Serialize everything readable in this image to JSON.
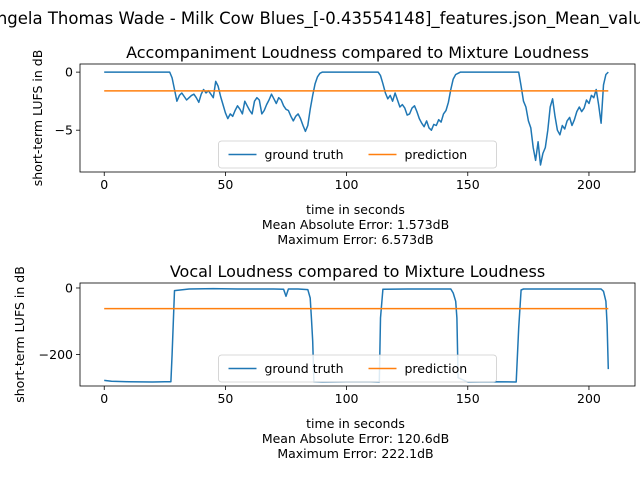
{
  "figure": {
    "suptitle": "ngela Thomas Wade - Milk Cow Blues_[-0.43554148]_features.json_Mean_valu"
  },
  "chart_data": [
    {
      "type": "line",
      "title": "Accompaniment Loudness compared to Mixture Loudness",
      "xlabel": "time in seconds",
      "ylabel": "short-term LUFS in dB",
      "xlim": [
        -10,
        219
      ],
      "ylim": [
        -8.6,
        0.7
      ],
      "xticks": [
        0,
        50,
        100,
        150,
        200
      ],
      "yticks": [
        0,
        -5
      ],
      "grid": false,
      "legend": "lower center, 2 columns",
      "caption": [
        "time in seconds",
        "Mean Absolute Error: 1.573dB",
        "Maximum Error: 6.573dB"
      ],
      "series": [
        {
          "name": "ground truth",
          "color": "#1f77b4",
          "x": [
            0,
            10,
            20,
            27,
            28,
            29,
            30,
            31,
            32,
            33,
            34,
            35,
            36,
            37,
            38,
            39,
            40,
            41,
            42,
            43,
            44,
            45,
            46,
            47,
            48,
            49,
            50,
            51,
            52,
            53,
            54,
            55,
            56,
            57,
            58,
            59,
            60,
            61,
            62,
            63,
            64,
            65,
            66,
            67,
            68,
            69,
            70,
            71,
            72,
            73,
            74,
            75,
            76,
            77,
            78,
            79,
            80,
            81,
            82,
            83,
            84,
            85,
            86,
            87,
            88,
            89,
            90,
            100,
            110,
            113,
            114,
            115,
            116,
            117,
            118,
            119,
            120,
            121,
            122,
            123,
            124,
            125,
            126,
            127,
            128,
            129,
            130,
            131,
            132,
            133,
            134,
            135,
            136,
            137,
            138,
            139,
            140,
            141,
            142,
            143,
            144,
            145,
            146,
            147,
            148,
            160,
            170,
            171,
            172,
            173,
            174,
            175,
            176,
            177,
            178,
            179,
            180,
            181,
            182,
            183,
            184,
            185,
            186,
            187,
            188,
            189,
            190,
            191,
            192,
            193,
            194,
            195,
            196,
            197,
            198,
            199,
            200,
            201,
            202,
            203,
            204,
            205,
            206,
            207,
            208
          ],
          "values": [
            0,
            0,
            0,
            0,
            -0.5,
            -1.5,
            -2.5,
            -2.0,
            -1.8,
            -2.1,
            -2.4,
            -2.2,
            -2.0,
            -1.9,
            -2.2,
            -2.6,
            -1.9,
            -1.5,
            -1.8,
            -1.6,
            -1.9,
            -2.2,
            -0.8,
            -1.2,
            -2.1,
            -2.8,
            -3.5,
            -4.0,
            -3.6,
            -3.8,
            -3.3,
            -2.9,
            -3.2,
            -3.6,
            -2.5,
            -2.9,
            -3.3,
            -3.6,
            -2.5,
            -2.2,
            -2.4,
            -3.6,
            -3.3,
            -2.8,
            -2.4,
            -1.9,
            -2.3,
            -2.7,
            -2.2,
            -2.4,
            -2.9,
            -3.2,
            -3.3,
            -3.8,
            -4.2,
            -3.8,
            -3.6,
            -4.0,
            -4.6,
            -5.1,
            -4.6,
            -3.2,
            -2.0,
            -1.0,
            -0.4,
            -0.1,
            0,
            0,
            0,
            0,
            -0.3,
            -1.0,
            -1.8,
            -2.3,
            -2.0,
            -2.5,
            -1.8,
            -2.4,
            -3.0,
            -2.8,
            -3.1,
            -3.7,
            -3.6,
            -3.1,
            -2.9,
            -3.4,
            -4.0,
            -4.4,
            -4.7,
            -4.2,
            -4.8,
            -5.0,
            -4.5,
            -4.6,
            -4.1,
            -4.3,
            -3.6,
            -3.3,
            -2.6,
            -1.5,
            -0.6,
            -0.2,
            -0.1,
            0,
            0,
            0,
            0,
            0,
            -1.2,
            -2.5,
            -3.0,
            -4.2,
            -4.8,
            -6.5,
            -7.6,
            -6.0,
            -8.0,
            -7.0,
            -6.5,
            -5.0,
            -3.0,
            -2.3,
            -3.8,
            -5.0,
            -5.4,
            -4.6,
            -4.9,
            -4.2,
            -3.9,
            -4.6,
            -4.1,
            -3.4,
            -3.0,
            -3.4,
            -3.1,
            -2.4,
            -2.7,
            -2.0,
            -2.2,
            -1.5,
            -2.8,
            -4.4,
            -1.1,
            -0.2,
            0
          ]
        },
        {
          "name": "prediction",
          "color": "#ff7f0e",
          "x": [
            0,
            208
          ],
          "values": [
            -1.62,
            -1.62
          ]
        }
      ]
    },
    {
      "type": "line",
      "title": "Vocal Loudness compared to Mixture Loudness",
      "xlabel": "time in seconds",
      "ylabel": "short-term LUFS in dB",
      "xlim": [
        -10,
        219
      ],
      "ylim": [
        -295,
        15
      ],
      "xticks": [
        0,
        50,
        100,
        150,
        200
      ],
      "yticks": [
        0,
        -200
      ],
      "grid": false,
      "legend": "lower center, 2 columns",
      "caption": [
        "time in seconds",
        "Mean Absolute Error: 120.6dB",
        "Maximum Error: 222.1dB"
      ],
      "series": [
        {
          "name": "ground truth",
          "color": "#1f77b4",
          "x": [
            0,
            3,
            10,
            20,
            25,
            27.5,
            28,
            29,
            35,
            45,
            55,
            70,
            74,
            75,
            76,
            80,
            84,
            85,
            85.5,
            86,
            86.5,
            90,
            100,
            110,
            113.5,
            114,
            115,
            125,
            135,
            143,
            144,
            145,
            145.5,
            146,
            150,
            160,
            170,
            171,
            172,
            173,
            180,
            190,
            200,
            205,
            206,
            207,
            207.5,
            208
          ],
          "values": [
            -278,
            -281,
            -282,
            -283,
            -282,
            -282,
            -200,
            -8,
            -3,
            -2,
            -3,
            -3,
            -4,
            -25,
            -3,
            -3,
            -5,
            -30,
            -95,
            -160,
            -282,
            -283,
            -282,
            -282,
            -283,
            -90,
            -4,
            -3,
            -3,
            -3,
            -15,
            -40,
            -90,
            -270,
            -283,
            -282,
            -283,
            -120,
            -6,
            -3,
            -3,
            -3,
            -3,
            -3,
            -10,
            -40,
            -110,
            -244
          ]
        },
        {
          "name": "prediction",
          "color": "#ff7f0e",
          "x": [
            0,
            208
          ],
          "values": [
            -62,
            -62
          ]
        }
      ]
    }
  ]
}
